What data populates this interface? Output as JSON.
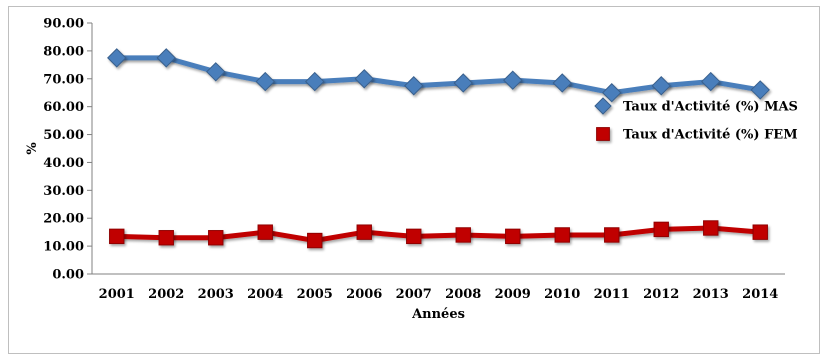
{
  "chart_data": {
    "type": "line",
    "title": "",
    "xlabel": "Années",
    "ylabel": "%",
    "ylim": [
      0,
      90
    ],
    "yticks": [
      "0.00",
      "10.00",
      "20.00",
      "30.00",
      "40.00",
      "50.00",
      "60.00",
      "70.00",
      "80.00",
      "90.00"
    ],
    "categories": [
      "2001",
      "2002",
      "2003",
      "2004",
      "2005",
      "2006",
      "2007",
      "2008",
      "2009",
      "2010",
      "2011",
      "2012",
      "2013",
      "2014"
    ],
    "grid": false,
    "legend_position": "right",
    "series": [
      {
        "name": "Taux d'Activité (%) MAS",
        "color": "#4a7ebb",
        "marker": "diamond",
        "values": [
          77.5,
          77.5,
          72.5,
          69,
          69,
          70,
          67.5,
          68.5,
          69.5,
          68.5,
          65,
          67.5,
          69,
          66
        ]
      },
      {
        "name": "Taux d'Activité (%) FEM",
        "color": "#c00000",
        "marker": "square",
        "values": [
          13.5,
          13,
          13,
          15,
          12,
          15,
          13.5,
          14,
          13.5,
          14,
          14,
          16,
          16.5,
          15
        ]
      }
    ]
  }
}
